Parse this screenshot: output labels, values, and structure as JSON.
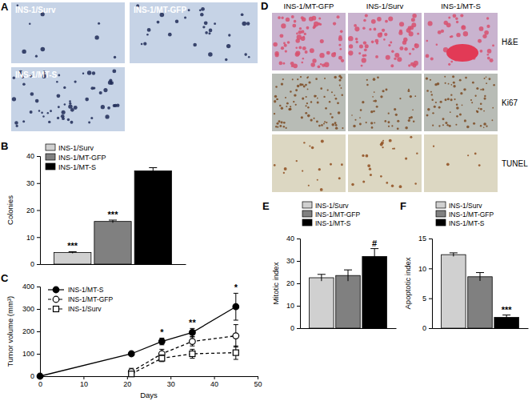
{
  "chart_data": [
    {
      "type": "bar",
      "panel_label": "B",
      "y_label": "Colonies",
      "categories": [
        "INS-1/Surv",
        "INS-1/MT-GFP",
        "INS-1/MT-S"
      ],
      "values": [
        4.3,
        15.8,
        34.5
      ],
      "error": [
        0.3,
        0.5,
        1.2
      ],
      "colors": [
        "#d0d0d0",
        "#808080",
        "#000000"
      ],
      "significance": [
        "***",
        "***",
        null
      ],
      "ylim": [
        0,
        40
      ],
      "yticks": [
        0,
        10,
        20,
        30,
        40
      ],
      "legend": "top-left",
      "tick_labels": "y"
    },
    {
      "type": "line",
      "panel_label": "C",
      "x_label": "Days",
      "y_label": "Tumor volume (mm³)",
      "series": [
        {
          "name": "INS-1/MT-S",
          "color": "#000000",
          "marker": "filled-circle",
          "line_style": "solid",
          "x": [
            0,
            21,
            28,
            35,
            45
          ],
          "values": [
            0,
            100,
            155,
            195,
            310
          ],
          "error": [
            null,
            8,
            15,
            18,
            60
          ]
        },
        {
          "name": "INS-1/MT-GFP",
          "color": "#000000",
          "marker": "open-circle",
          "line_style": "dashed",
          "x": [
            21,
            28,
            35,
            45
          ],
          "values": [
            20,
            100,
            155,
            180
          ],
          "error": [
            15,
            20,
            20,
            50
          ]
        },
        {
          "name": "INS-1/Surv",
          "color": "#000000",
          "marker": "open-square",
          "line_style": "dashed",
          "x": [
            21,
            28,
            35,
            45
          ],
          "values": [
            10,
            80,
            100,
            105
          ],
          "error": [
            10,
            15,
            20,
            30
          ]
        }
      ],
      "annotations": [
        {
          "x": 28,
          "text": "*"
        },
        {
          "x": 35,
          "text": "**"
        },
        {
          "x": 45,
          "text": "*"
        }
      ],
      "xlim": [
        0,
        50
      ],
      "xticks": [
        0,
        10,
        20,
        30,
        40,
        50
      ],
      "ylim": [
        0,
        400
      ],
      "yticks": [
        0,
        100,
        200,
        300,
        400
      ],
      "legend": "top-left"
    },
    {
      "type": "bar",
      "panel_label": "E",
      "y_label": "Mitotic index",
      "categories": [
        "INS-1/Surv",
        "INS-1/MT-GFP",
        "INS-1/MT-S"
      ],
      "values": [
        22.5,
        23.5,
        32
      ],
      "error": [
        1.5,
        2.5,
        3.5
      ],
      "colors": [
        "#d0d0d0",
        "#808080",
        "#000000"
      ],
      "significance": [
        null,
        null,
        "#"
      ],
      "ylim": [
        0,
        40
      ],
      "yticks": [
        0,
        10,
        20,
        30,
        40
      ],
      "legend": "top-left",
      "tick_labels": "y"
    },
    {
      "type": "bar",
      "panel_label": "F",
      "y_label": "Apoptotic index",
      "categories": [
        "INS-1/Surv",
        "INS-1/MT-GFP",
        "INS-1/MT-S"
      ],
      "values": [
        12.3,
        8.6,
        1.8
      ],
      "error": [
        0.3,
        0.7,
        0.4
      ],
      "colors": [
        "#d0d0d0",
        "#808080",
        "#000000"
      ],
      "significance": [
        null,
        null,
        "***"
      ],
      "ylim": [
        0,
        15
      ],
      "yticks": [
        0,
        5,
        10,
        15
      ],
      "legend": "top-left",
      "tick_labels": "y"
    }
  ],
  "micrographs": {
    "A": {
      "panel_label": "A",
      "images": [
        "INS-1/Surv",
        "INS-1/MT-GFP",
        "INS-1/MT-S"
      ]
    },
    "D": {
      "panel_label": "D",
      "columns": [
        "INS-1/MT-GFP",
        "INS-1/Surv",
        "INS-1/MT-S"
      ],
      "rows": [
        "H&E",
        "Ki67",
        "TUNEL"
      ]
    }
  }
}
